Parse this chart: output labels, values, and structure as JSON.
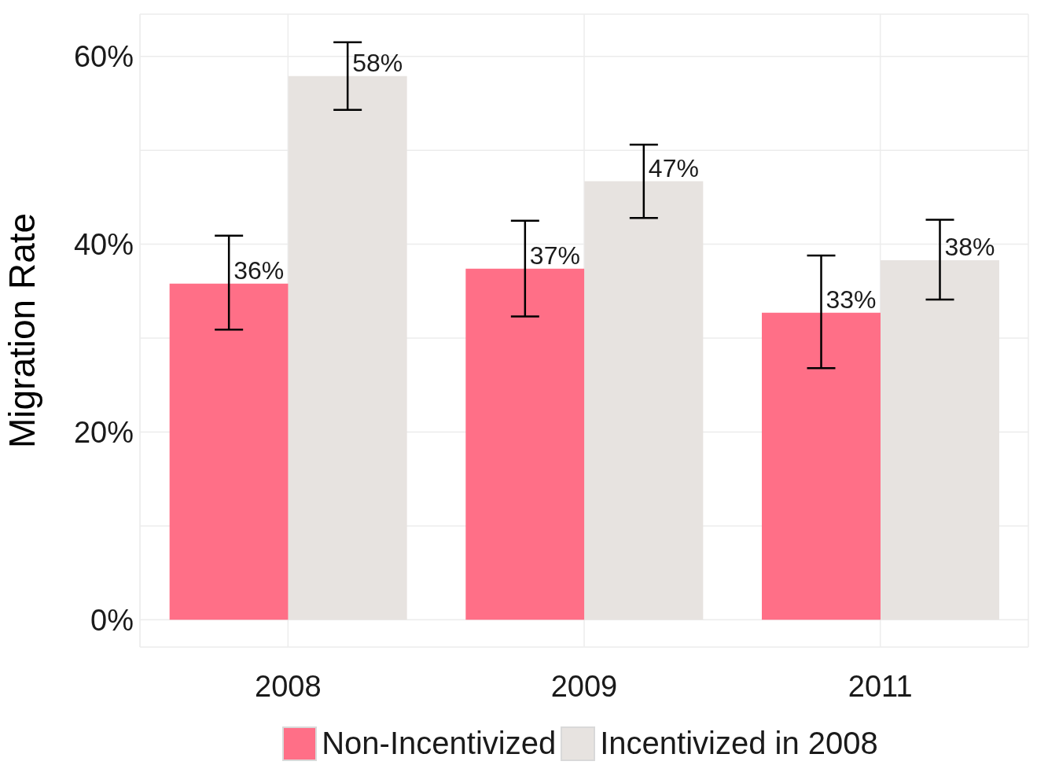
{
  "chart_data": {
    "type": "bar",
    "ylabel": "Migration Rate",
    "categories": [
      "2008",
      "2009",
      "2011"
    ],
    "series": [
      {
        "name": "Non-Incentivized",
        "color": "#ff6f87",
        "values": [
          35.8,
          37.4,
          32.7
        ],
        "errors": [
          [
            30.9,
            40.9
          ],
          [
            32.3,
            42.5
          ],
          [
            26.8,
            38.8
          ]
        ],
        "value_labels": [
          "36%",
          "37%",
          "33%"
        ]
      },
      {
        "name": "Incentivized in 2008",
        "color": "#e7e3e0",
        "values": [
          57.9,
          46.7,
          38.3
        ],
        "errors": [
          [
            54.3,
            61.5
          ],
          [
            42.8,
            50.6
          ],
          [
            34.1,
            42.6
          ]
        ],
        "value_labels": [
          "58%",
          "47%",
          "38%"
        ]
      }
    ],
    "ylim": [
      -2.9,
      64.5
    ],
    "yticks": [
      {
        "value": 0,
        "label": "0%"
      },
      {
        "value": 10,
        "label": null
      },
      {
        "value": 20,
        "label": "20%"
      },
      {
        "value": 30,
        "label": null
      },
      {
        "value": 40,
        "label": "40%"
      },
      {
        "value": 50,
        "label": null
      },
      {
        "value": 60,
        "label": "60%"
      }
    ],
    "grid": true,
    "legend": "bottom"
  }
}
